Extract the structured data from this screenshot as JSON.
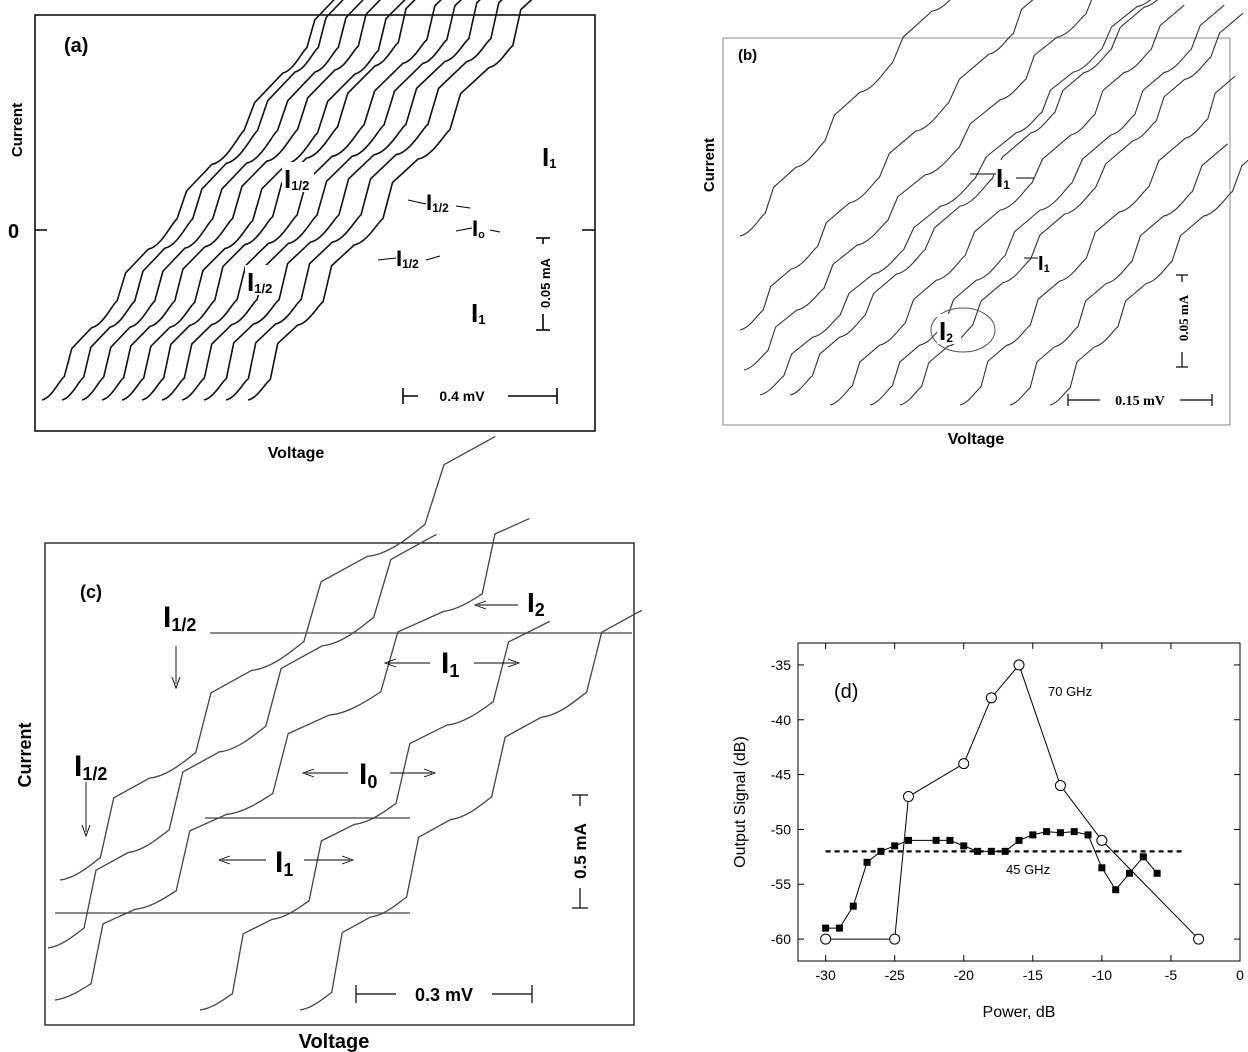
{
  "panels": {
    "a": {
      "tag": "(a)",
      "ylabel": "Current",
      "xlabel": "Voltage",
      "zero": "0",
      "scale_current": "0.05 mA",
      "scale_voltage": "0.4 mV",
      "steps": [
        {
          "base": "I",
          "sub": "1/2"
        },
        {
          "base": "I",
          "sub": "1/2"
        },
        {
          "base": "I",
          "sub": "1/2"
        },
        {
          "base": "I",
          "sub": "1/2"
        },
        {
          "base": "I",
          "sub": "o"
        },
        {
          "base": "I",
          "sub": "1"
        },
        {
          "base": "I",
          "sub": "1"
        }
      ]
    },
    "b": {
      "tag": "(b)",
      "ylabel": "Current",
      "xlabel": "Voltage",
      "scale_current": "0.05 mA",
      "scale_voltage": "0.15 mV",
      "steps": [
        {
          "base": "I",
          "sub": "1"
        },
        {
          "base": "I",
          "sub": "1"
        },
        {
          "base": "I",
          "sub": "2"
        }
      ]
    },
    "c": {
      "tag": "(c)",
      "ylabel": "Current",
      "xlabel": "Voltage",
      "scale_current": "0.5 mA",
      "scale_voltage": "0.3 mV",
      "steps": [
        {
          "base": "I",
          "sub": "1/2"
        },
        {
          "base": "I",
          "sub": "1/2"
        },
        {
          "base": "I",
          "sub": "2"
        },
        {
          "base": "I",
          "sub": "1"
        },
        {
          "base": "I",
          "sub": "0"
        },
        {
          "base": "I",
          "sub": "1"
        }
      ]
    }
  },
  "chart_data": {
    "type": "line",
    "tag": "(d)",
    "xlabel": "Power, dB",
    "ylabel": "Output Signal (dB)",
    "xlim": [
      -32,
      0
    ],
    "ylim": [
      -62,
      -33
    ],
    "xticks": [
      -30,
      -25,
      -20,
      -15,
      -10,
      -5,
      0
    ],
    "yticks": [
      -35,
      -40,
      -45,
      -50,
      -55,
      -60
    ],
    "colors": {
      "line": "#000000"
    },
    "series": [
      {
        "name": "70 GHz",
        "marker": "open-circle",
        "x": [
          -30,
          -25,
          -24,
          -20,
          -18,
          -16,
          -13,
          -10,
          -3
        ],
        "y": [
          -60,
          -60,
          -47,
          -44,
          -38,
          -35,
          -46,
          -51,
          -60
        ]
      },
      {
        "name": "45 GHz",
        "marker": "filled-square",
        "x": [
          -30,
          -29,
          -28,
          -27,
          -26,
          -25,
          -24,
          -22,
          -21,
          -20,
          -19,
          -18,
          -17,
          -16,
          -15,
          -14,
          -13,
          -12,
          -11,
          -10,
          -9,
          -8,
          -7,
          -6
        ],
        "y": [
          -59,
          -59,
          -57,
          -53,
          -52,
          -51.5,
          -51,
          -51,
          -51,
          -51.5,
          -52,
          -52,
          -52,
          -51,
          -50.5,
          -50.2,
          -50.3,
          -50.2,
          -50.5,
          -53.5,
          -55.5,
          -54,
          -52.5,
          -54
        ]
      },
      {
        "name": "",
        "style": "dashed",
        "x": [
          -30,
          -4
        ],
        "y": [
          -52,
          -52
        ]
      }
    ]
  }
}
